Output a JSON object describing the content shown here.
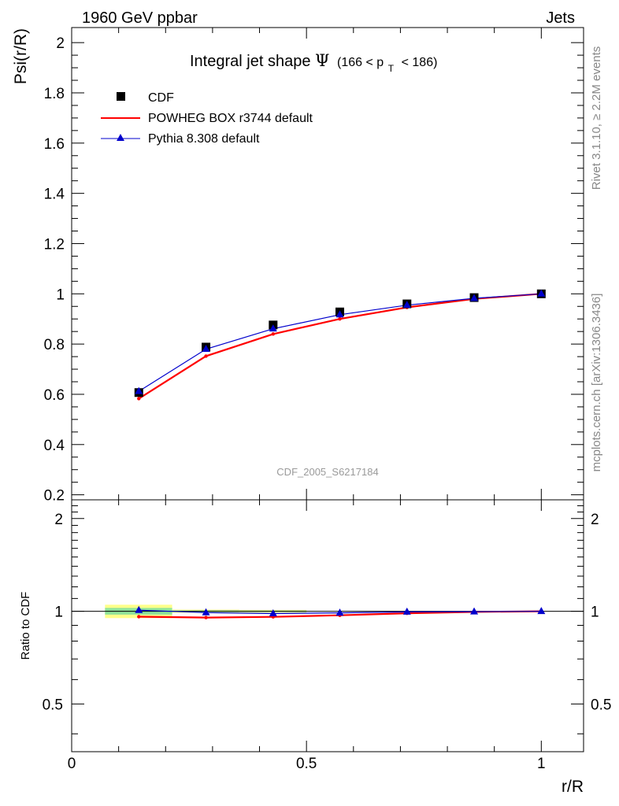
{
  "header": {
    "left": "1960 GeV ppbar",
    "right": "Jets"
  },
  "side_labels": {
    "rivet": "Rivet 3.1.10, ≥ 2.2M events",
    "mcplots": "mcplots.cern.ch [arXiv:1306.3436]"
  },
  "chart_data": [
    {
      "type": "line",
      "title": "Integral jet shape",
      "title_symbol": "Ψ",
      "title_cut": "(166 < p",
      "title_cut_sub": "T",
      "title_cut_end": "< 186)",
      "ylabel": "Psi(r/R)",
      "xlabel": "r/R",
      "watermark": "CDF_2005_S6217184",
      "xlim": [
        0,
        1.09
      ],
      "ylim": [
        0.18,
        2.06
      ],
      "yticks": [
        0.2,
        0.4,
        0.6,
        0.8,
        1,
        1.2,
        1.4,
        1.6,
        1.8,
        2
      ],
      "ytick_labels": [
        "0.2",
        "0.4",
        "0.6",
        "0.8",
        "1",
        "1.2",
        "1.4",
        "1.6",
        "1.8",
        "2"
      ],
      "legend_position": "top-left",
      "x": [
        0.143,
        0.286,
        0.429,
        0.571,
        0.714,
        0.857,
        1.0
      ],
      "series": [
        {
          "name": "CDF",
          "style": "markers",
          "color": "#000000",
          "values": [
            0.607,
            0.788,
            0.876,
            0.928,
            0.96,
            0.985,
            1.0
          ]
        },
        {
          "name": "POWHEG BOX r3744 default",
          "style": "line",
          "color": "#ff0000",
          "values": [
            0.583,
            0.752,
            0.84,
            0.9,
            0.946,
            0.98,
            1.0
          ]
        },
        {
          "name": "Pythia 8.308 default",
          "style": "line-triangle",
          "color": "#0000cc",
          "values": [
            0.612,
            0.78,
            0.861,
            0.917,
            0.955,
            0.982,
            1.0
          ]
        }
      ]
    },
    {
      "type": "line",
      "ylabel": "Ratio to CDF",
      "xlabel": "r/R",
      "xlim": [
        0,
        1.09
      ],
      "ylim": [
        0.35,
        2.3
      ],
      "yscale": "log",
      "yticks": [
        0.5,
        1,
        2
      ],
      "ytick_labels": [
        "0.5",
        "1",
        "2"
      ],
      "xticks": [
        0,
        0.5,
        1
      ],
      "xtick_labels": [
        "0",
        "0.5",
        "1"
      ],
      "x": [
        0.143,
        0.286,
        0.429,
        0.571,
        0.714,
        0.857,
        1.0
      ],
      "series": [
        {
          "name": "POWHEG BOX r3744 default",
          "color": "#ff0000",
          "values": [
            0.96,
            0.954,
            0.959,
            0.97,
            0.985,
            0.995,
            1.0
          ]
        },
        {
          "name": "Pythia 8.308 default",
          "color": "#0000cc",
          "values": [
            1.008,
            0.99,
            0.983,
            0.988,
            0.995,
            0.997,
            1.0
          ]
        }
      ],
      "uncertainty_bands": [
        {
          "x_range": [
            0.071,
            0.214
          ],
          "outer": [
            0.95,
            1.05
          ],
          "inner": [
            0.975,
            1.025
          ]
        },
        {
          "x_range": [
            0.214,
            0.357
          ],
          "outer": [
            0.988,
            1.012
          ],
          "inner": [
            0.994,
            1.006
          ]
        },
        {
          "x_range": [
            0.357,
            0.5
          ],
          "outer": [
            0.99,
            1.01
          ],
          "inner": [
            0.995,
            1.005
          ]
        }
      ]
    }
  ]
}
